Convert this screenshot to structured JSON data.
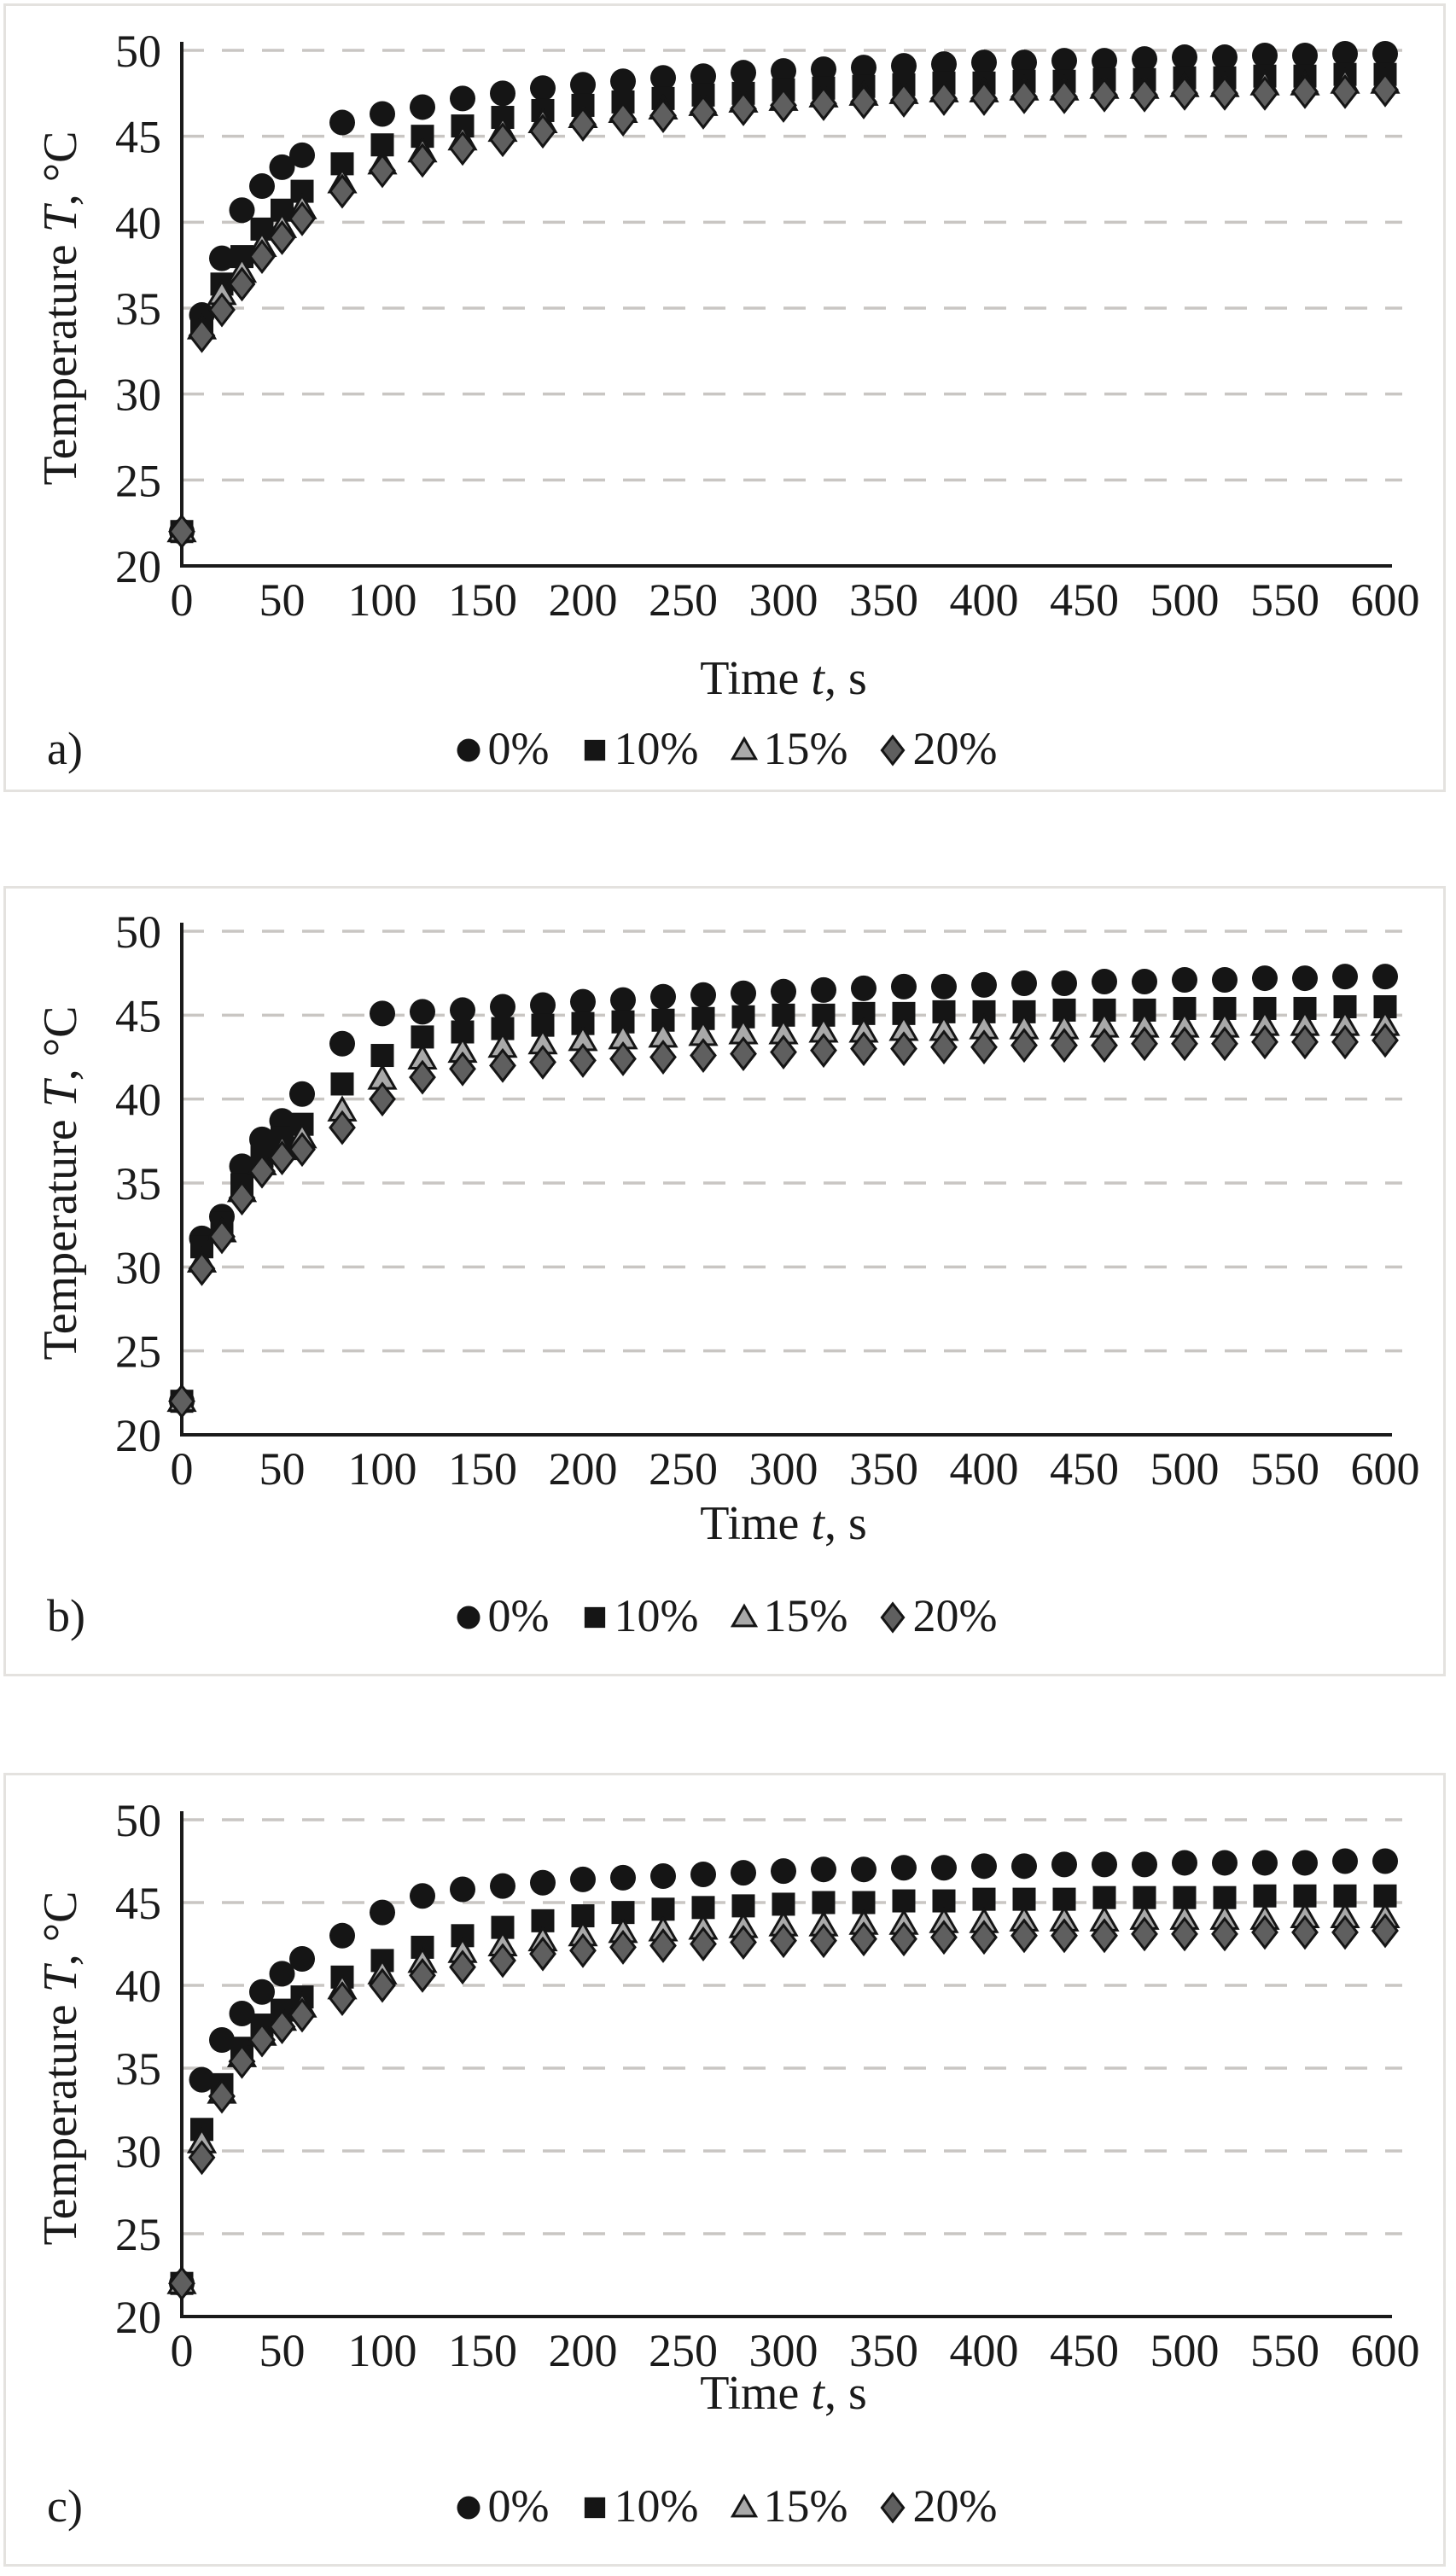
{
  "page": {
    "background": "#ffffff",
    "panel_border_color": "#e4e2df",
    "grid_color": "#c9c6c3",
    "axis_color": "#1a1a1a",
    "text_color": "#1a1a1a"
  },
  "chart_data": [
    {
      "type": "scatter",
      "panel_label": "a)",
      "xlabel_parts": [
        "Time ",
        "t",
        ", s"
      ],
      "ylabel_parts": [
        "Temperature ",
        "T",
        ", °C"
      ],
      "xlim": [
        0,
        620
      ],
      "ylim": [
        20,
        50
      ],
      "xticks": [
        0,
        50,
        100,
        150,
        200,
        250,
        300,
        350,
        400,
        450,
        500,
        550,
        600
      ],
      "yticks": [
        20,
        25,
        30,
        35,
        40,
        45,
        50
      ],
      "grid": "horizontal-dashed",
      "legend_position": "bottom-center",
      "x": [
        0,
        10,
        20,
        30,
        40,
        50,
        60,
        80,
        100,
        120,
        140,
        160,
        180,
        200,
        220,
        240,
        260,
        280,
        300,
        320,
        340,
        360,
        380,
        400,
        420,
        440,
        460,
        480,
        500,
        520,
        540,
        560,
        580,
        600
      ],
      "series": [
        {
          "name": "0%",
          "marker": "circle",
          "fill": "#151515",
          "stroke": "none",
          "values": [
            22.0,
            34.6,
            37.9,
            40.7,
            42.1,
            43.2,
            43.9,
            45.8,
            46.3,
            46.7,
            47.2,
            47.5,
            47.8,
            48.0,
            48.2,
            48.4,
            48.5,
            48.7,
            48.8,
            48.9,
            49.0,
            49.1,
            49.2,
            49.3,
            49.3,
            49.4,
            49.4,
            49.5,
            49.6,
            49.6,
            49.7,
            49.7,
            49.8,
            49.8
          ]
        },
        {
          "name": "10%",
          "marker": "square",
          "fill": "#151515",
          "stroke": "none",
          "values": [
            22.0,
            34.1,
            36.4,
            38.0,
            39.6,
            40.7,
            41.8,
            43.4,
            44.5,
            45.0,
            45.6,
            46.1,
            46.5,
            46.8,
            47.0,
            47.2,
            47.4,
            47.5,
            47.7,
            47.8,
            47.9,
            48.0,
            48.1,
            48.1,
            48.2,
            48.2,
            48.3,
            48.3,
            48.4,
            48.4,
            48.5,
            48.5,
            48.6,
            48.6
          ]
        },
        {
          "name": "15%",
          "marker": "triangle",
          "fill": "#a9a9a9",
          "stroke": "#151515",
          "values": [
            22.0,
            33.8,
            35.8,
            37.1,
            38.6,
            39.7,
            40.8,
            42.3,
            43.4,
            44.1,
            44.8,
            45.3,
            45.8,
            46.1,
            46.4,
            46.6,
            46.8,
            47.0,
            47.1,
            47.3,
            47.4,
            47.5,
            47.6,
            47.6,
            47.7,
            47.7,
            47.8,
            47.8,
            47.9,
            47.9,
            48.0,
            48.0,
            48.1,
            48.1
          ]
        },
        {
          "name": "20%",
          "marker": "diamond",
          "fill": "#5f5f5f",
          "stroke": "#151515",
          "values": [
            22.0,
            33.4,
            34.9,
            36.4,
            38.0,
            39.1,
            40.2,
            41.8,
            43.0,
            43.6,
            44.3,
            44.8,
            45.3,
            45.7,
            46.0,
            46.2,
            46.4,
            46.6,
            46.8,
            46.9,
            47.0,
            47.1,
            47.2,
            47.2,
            47.3,
            47.3,
            47.4,
            47.4,
            47.5,
            47.5,
            47.5,
            47.6,
            47.6,
            47.7
          ]
        }
      ]
    },
    {
      "type": "scatter",
      "panel_label": "b)",
      "xlabel_parts": [
        "Time ",
        "t",
        ", s"
      ],
      "ylabel_parts": [
        "Temperature ",
        "T",
        ", °C"
      ],
      "xlim": [
        0,
        620
      ],
      "ylim": [
        20,
        50
      ],
      "xticks": [
        0,
        50,
        100,
        150,
        200,
        250,
        300,
        350,
        400,
        450,
        500,
        550,
        600
      ],
      "yticks": [
        20,
        25,
        30,
        35,
        40,
        45,
        50
      ],
      "grid": "horizontal-dashed",
      "legend_position": "bottom-center",
      "x": [
        0,
        10,
        20,
        30,
        40,
        50,
        60,
        80,
        100,
        120,
        140,
        160,
        180,
        200,
        220,
        240,
        260,
        280,
        300,
        320,
        340,
        360,
        380,
        400,
        420,
        440,
        460,
        480,
        500,
        520,
        540,
        560,
        580,
        600
      ],
      "series": [
        {
          "name": "0%",
          "marker": "circle",
          "fill": "#151515",
          "stroke": "none",
          "values": [
            22.0,
            31.7,
            33.0,
            36.0,
            37.6,
            38.7,
            40.3,
            43.3,
            45.1,
            45.2,
            45.3,
            45.5,
            45.6,
            45.8,
            45.9,
            46.1,
            46.2,
            46.3,
            46.4,
            46.5,
            46.6,
            46.7,
            46.7,
            46.8,
            46.9,
            46.9,
            47.0,
            47.0,
            47.1,
            47.1,
            47.2,
            47.2,
            47.3,
            47.3
          ]
        },
        {
          "name": "10%",
          "marker": "square",
          "fill": "#151515",
          "stroke": "none",
          "values": [
            22.0,
            31.2,
            32.6,
            34.9,
            36.6,
            37.7,
            38.5,
            40.9,
            42.6,
            43.7,
            44.0,
            44.2,
            44.4,
            44.5,
            44.6,
            44.7,
            44.8,
            44.9,
            45.0,
            45.0,
            45.1,
            45.1,
            45.2,
            45.2,
            45.2,
            45.3,
            45.3,
            45.3,
            45.4,
            45.4,
            45.4,
            45.4,
            45.5,
            45.5
          ]
        },
        {
          "name": "15%",
          "marker": "triangle",
          "fill": "#a9a9a9",
          "stroke": "#151515",
          "values": [
            22.0,
            30.3,
            32.1,
            34.5,
            36.1,
            37.0,
            37.7,
            39.3,
            41.2,
            42.4,
            42.8,
            43.1,
            43.3,
            43.5,
            43.6,
            43.7,
            43.8,
            43.9,
            43.9,
            44.0,
            44.0,
            44.1,
            44.1,
            44.2,
            44.2,
            44.2,
            44.3,
            44.3,
            44.3,
            44.3,
            44.4,
            44.4,
            44.4,
            44.4
          ]
        },
        {
          "name": "20%",
          "marker": "diamond",
          "fill": "#5f5f5f",
          "stroke": "#151515",
          "values": [
            22.0,
            29.9,
            31.8,
            34.1,
            35.7,
            36.5,
            37.0,
            38.3,
            40.0,
            41.3,
            41.8,
            42.0,
            42.2,
            42.3,
            42.4,
            42.5,
            42.6,
            42.7,
            42.8,
            42.9,
            43.0,
            43.0,
            43.1,
            43.1,
            43.2,
            43.2,
            43.2,
            43.3,
            43.3,
            43.3,
            43.4,
            43.4,
            43.4,
            43.5
          ]
        }
      ]
    },
    {
      "type": "scatter",
      "panel_label": "c)",
      "xlabel_parts": [
        "Time ",
        "t",
        ", s"
      ],
      "ylabel_parts": [
        "Temperature ",
        "T",
        ", °C"
      ],
      "xlim": [
        0,
        620
      ],
      "ylim": [
        20,
        50
      ],
      "xticks": [
        0,
        50,
        100,
        150,
        200,
        250,
        300,
        350,
        400,
        450,
        500,
        550,
        600
      ],
      "yticks": [
        20,
        25,
        30,
        35,
        40,
        45,
        50
      ],
      "grid": "horizontal-dashed",
      "legend_position": "bottom-center",
      "x": [
        0,
        10,
        20,
        30,
        40,
        50,
        60,
        80,
        100,
        120,
        140,
        160,
        180,
        200,
        220,
        240,
        260,
        280,
        300,
        320,
        340,
        360,
        380,
        400,
        420,
        440,
        460,
        480,
        500,
        520,
        540,
        560,
        580,
        600
      ],
      "series": [
        {
          "name": "0%",
          "marker": "circle",
          "fill": "#151515",
          "stroke": "none",
          "values": [
            22.0,
            34.3,
            36.7,
            38.3,
            39.6,
            40.7,
            41.6,
            43.0,
            44.4,
            45.4,
            45.8,
            46.0,
            46.2,
            46.4,
            46.5,
            46.6,
            46.7,
            46.8,
            46.9,
            47.0,
            47.0,
            47.1,
            47.1,
            47.2,
            47.2,
            47.3,
            47.3,
            47.3,
            47.4,
            47.4,
            47.4,
            47.4,
            47.5,
            47.5
          ]
        },
        {
          "name": "10%",
          "marker": "square",
          "fill": "#151515",
          "stroke": "none",
          "values": [
            22.0,
            31.3,
            34.0,
            36.2,
            37.6,
            38.5,
            39.3,
            40.5,
            41.5,
            42.3,
            43.0,
            43.5,
            43.9,
            44.2,
            44.4,
            44.6,
            44.7,
            44.8,
            44.9,
            45.0,
            45.0,
            45.1,
            45.1,
            45.2,
            45.2,
            45.2,
            45.3,
            45.3,
            45.3,
            45.3,
            45.4,
            45.4,
            45.4,
            45.4
          ]
        },
        {
          "name": "15%",
          "marker": "triangle",
          "fill": "#a9a9a9",
          "stroke": "#151515",
          "values": [
            22.0,
            30.5,
            33.5,
            35.7,
            37.0,
            37.9,
            38.7,
            39.8,
            40.7,
            41.4,
            42.0,
            42.4,
            42.7,
            43.0,
            43.2,
            43.3,
            43.4,
            43.5,
            43.6,
            43.6,
            43.7,
            43.7,
            43.8,
            43.8,
            43.9,
            43.9,
            43.9,
            44.0,
            44.0,
            44.0,
            44.0,
            44.1,
            44.1,
            44.1
          ]
        },
        {
          "name": "20%",
          "marker": "diamond",
          "fill": "#5f5f5f",
          "stroke": "#151515",
          "values": [
            22.0,
            29.6,
            33.3,
            35.4,
            36.7,
            37.5,
            38.2,
            39.2,
            40.0,
            40.6,
            41.1,
            41.5,
            41.9,
            42.1,
            42.3,
            42.4,
            42.5,
            42.6,
            42.7,
            42.7,
            42.8,
            42.8,
            42.9,
            42.9,
            43.0,
            43.0,
            43.0,
            43.1,
            43.1,
            43.1,
            43.2,
            43.2,
            43.2,
            43.3
          ]
        }
      ]
    }
  ]
}
